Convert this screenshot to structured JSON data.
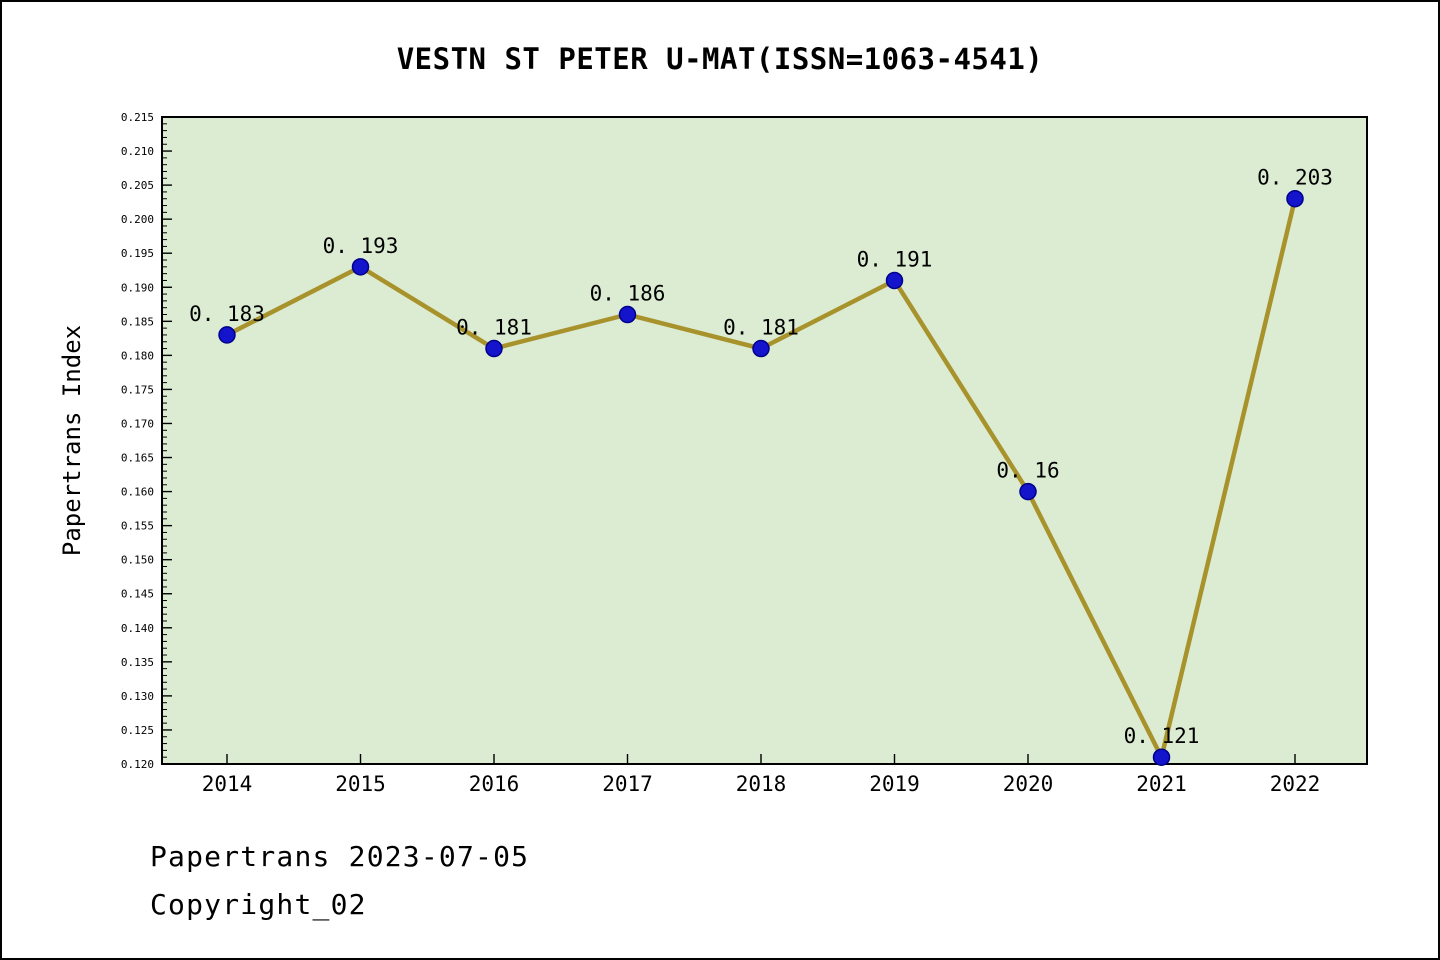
{
  "chart_data": {
    "type": "line",
    "title": "VESTN ST PETER U-MAT(ISSN=1063-4541)",
    "ylabel": "Papertrans Index",
    "xlabel": "",
    "x": [
      2014,
      2015,
      2016,
      2017,
      2018,
      2019,
      2020,
      2021,
      2022
    ],
    "values": [
      0.183,
      0.193,
      0.181,
      0.186,
      0.181,
      0.191,
      0.16,
      0.121,
      0.203
    ],
    "point_labels": [
      "0. 183",
      "0. 193",
      "0. 181",
      "0. 186",
      "0. 181",
      "0. 191",
      "0. 16",
      "0. 121",
      "0. 203"
    ],
    "ylim": [
      0.12,
      0.215
    ],
    "ytick_step": 0.005,
    "yminor_step": 0.001,
    "grid": false,
    "legend": null,
    "plot_bg": "#dcecd2",
    "line_color": "#a8922c",
    "marker_color": "#1414cc",
    "marker_edge": "#00008b",
    "axis_color": "#000000"
  },
  "footer": {
    "line1": "Papertrans 2023-07-05",
    "line2": "Copyright_02"
  }
}
